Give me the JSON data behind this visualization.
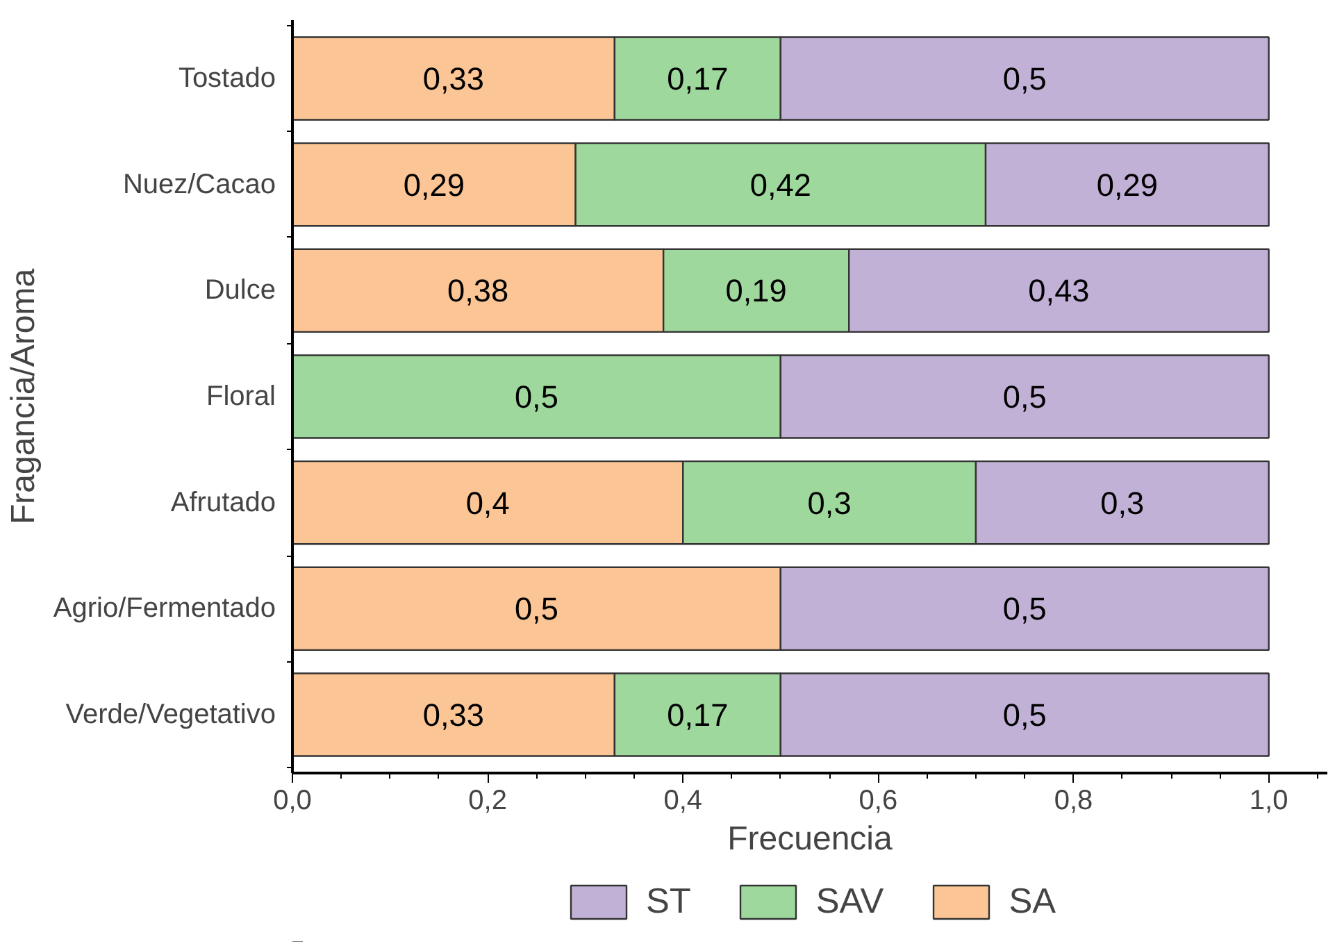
{
  "chart_data": {
    "type": "bar",
    "orientation": "horizontal",
    "stacked": true,
    "xlabel": "Frecuencia",
    "ylabel": "Fragancia/Aroma",
    "categories": [
      "Tostado",
      "Nuez/Cacao",
      "Dulce",
      "Floral",
      "Afrutado",
      "Agrio/Fermentado",
      "Verde/Vegetativo"
    ],
    "series": [
      {
        "name": "SA",
        "color": "#fbc595",
        "values": [
          0.33,
          0.29,
          0.38,
          0,
          0.4,
          0.5,
          0.33
        ],
        "value_labels": [
          "0,33",
          "0,29",
          "0,38",
          null,
          "0,4",
          "0,5",
          "0,33"
        ]
      },
      {
        "name": "SAV",
        "color": "#9fd89d",
        "values": [
          0.17,
          0.42,
          0.19,
          0.5,
          0.3,
          0,
          0.17
        ],
        "value_labels": [
          "0,17",
          "0,42",
          "0,19",
          "0,5",
          "0,3",
          null,
          "0,17"
        ]
      },
      {
        "name": "ST",
        "color": "#c2b1d7",
        "values": [
          0.5,
          0.29,
          0.43,
          0.5,
          0.3,
          0.5,
          0.5
        ],
        "value_labels": [
          "0,5",
          "0,29",
          "0,43",
          "0,5",
          "0,3",
          "0,5",
          "0,5"
        ]
      }
    ],
    "xlim": [
      0,
      1.06
    ],
    "xticks": [
      {
        "value": 0,
        "label": "0,0"
      },
      {
        "value": 0.2,
        "label": "0,2"
      },
      {
        "value": 0.4,
        "label": "0,4"
      },
      {
        "value": 0.6,
        "label": "0,6"
      },
      {
        "value": 0.8,
        "label": "0,8"
      },
      {
        "value": 1.0,
        "label": "1,0"
      }
    ],
    "legend": "bottom",
    "grid": false
  }
}
